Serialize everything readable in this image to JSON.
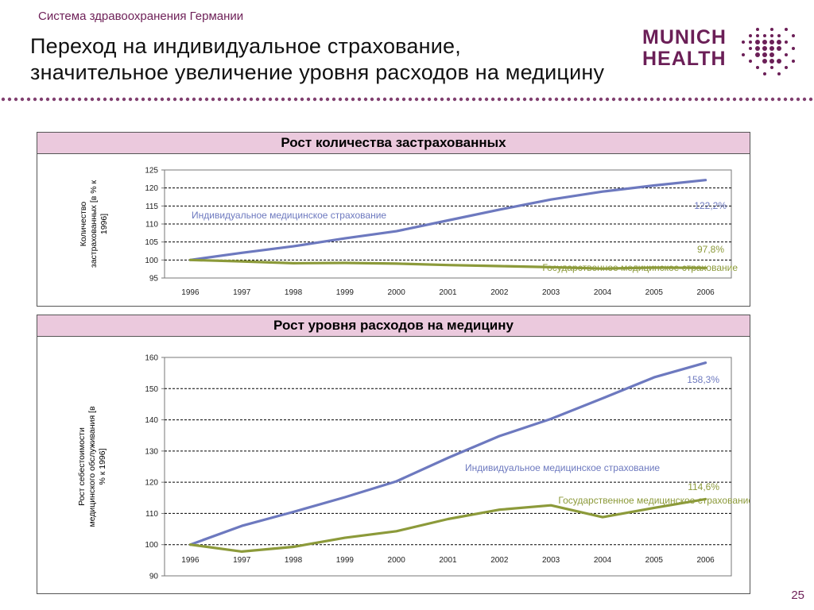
{
  "header": {
    "section": "Система здравоохранения Германии",
    "title_line1": "Переход на индивидуальное страхование,",
    "title_line2": "значительное увеличение уровня расходов на медицину"
  },
  "logo": {
    "line1": "MUNICH",
    "line2": "HEALTH"
  },
  "colors": {
    "brand": "#6b1f57",
    "panel_header": "#ebc9dd",
    "private_series": "#6d79bf",
    "public_series": "#8c9a3a"
  },
  "page_number": "25",
  "chart_data": [
    {
      "type": "line",
      "title": "Рост количества застрахованных",
      "ylabel": "Количество застрахованных [в % к 1996]",
      "xlabel": "",
      "categories": [
        "1996",
        "1997",
        "1998",
        "1999",
        "2000",
        "2001",
        "2002",
        "2003",
        "2004",
        "2005",
        "2006"
      ],
      "ylim": [
        95,
        125
      ],
      "yticks": [
        95,
        100,
        105,
        110,
        115,
        120,
        125
      ],
      "grid": "dashed horizontal",
      "series": [
        {
          "name": "Индивидуальное медицинское страхование",
          "color": "#6d79bf",
          "values": [
            100,
            102,
            103.8,
            106,
            108,
            111,
            114,
            116.8,
            119,
            120.7,
            122.2
          ],
          "end_label": "122,2%"
        },
        {
          "name": "Государственное медицинское страхование",
          "color": "#8c9a3a",
          "values": [
            100,
            99.6,
            99.1,
            99.2,
            99.0,
            98.6,
            98.3,
            98.0,
            97.6,
            97.9,
            97.8
          ],
          "end_label": "97,8%"
        }
      ]
    },
    {
      "type": "line",
      "title": "Рост уровня расходов на медицину",
      "ylabel": "Рост себестоимости медицинского обслуживания [в % к 1996]",
      "xlabel": "",
      "categories": [
        "1996",
        "1997",
        "1998",
        "1999",
        "2000",
        "2001",
        "2002",
        "2003",
        "2004",
        "2005",
        "2006"
      ],
      "ylim": [
        90,
        160
      ],
      "yticks": [
        90,
        100,
        110,
        120,
        130,
        140,
        150,
        160
      ],
      "grid": "dashed horizontal",
      "series": [
        {
          "name": "Индивидуальное медицинское страхование",
          "color": "#6d79bf",
          "values": [
            100,
            106,
            110.5,
            115.2,
            120.3,
            127.8,
            134.8,
            140.3,
            146.9,
            153.6,
            158.3
          ],
          "end_label": "158,3%"
        },
        {
          "name": "Государственное медицинское страхование",
          "color": "#8c9a3a",
          "values": [
            100,
            97.8,
            99.3,
            102.2,
            104.3,
            108.2,
            111.2,
            112.6,
            108.8,
            111.8,
            114.6
          ],
          "end_label": "114,6%"
        }
      ]
    }
  ]
}
